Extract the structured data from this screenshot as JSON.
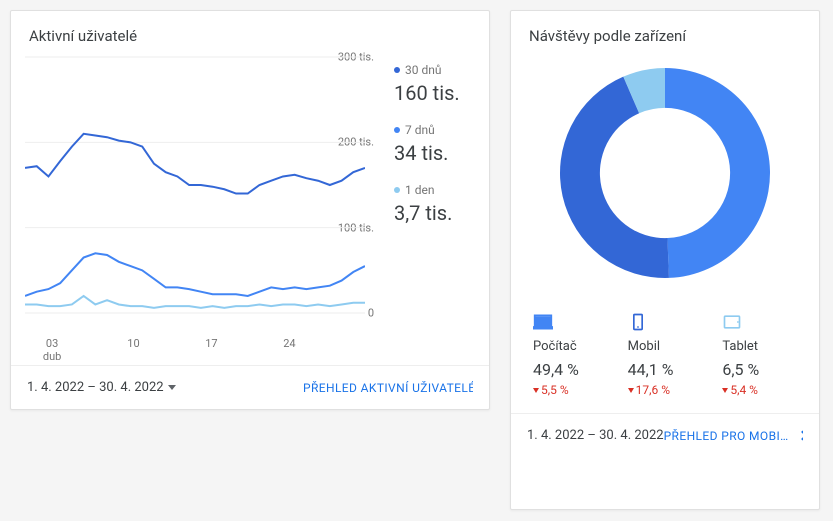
{
  "left_card": {
    "title": "Aktivní uživatelé",
    "date_range": "1. 4. 2022 – 30. 4. 2022",
    "footer_link": "PŘEHLED AKTIVNÍ UŽIVATELÉ",
    "chart": {
      "type": "line",
      "background_color": "#ffffff",
      "grid_color": "#eeeeee",
      "ylim": [
        0,
        300
      ],
      "ytick_step": 100,
      "y_labels": [
        "0",
        "100 tis.",
        "200 tis.",
        "300 tis."
      ],
      "x_categories": [
        "03",
        "10",
        "17",
        "24"
      ],
      "x_sublabel": "dub",
      "line_width": 2,
      "series": [
        {
          "name": "30 dnů",
          "color": "#3367d6",
          "value_text": "160 tis.",
          "points": [
            170,
            172,
            160,
            178,
            195,
            210,
            208,
            206,
            202,
            200,
            195,
            175,
            165,
            160,
            150,
            150,
            148,
            145,
            140,
            140,
            150,
            155,
            160,
            162,
            158,
            155,
            150,
            155,
            165,
            170
          ]
        },
        {
          "name": "7 dnů",
          "color": "#4285f4",
          "value_text": "34 tis.",
          "points": [
            20,
            25,
            28,
            35,
            50,
            65,
            70,
            68,
            60,
            55,
            50,
            40,
            30,
            30,
            28,
            25,
            22,
            22,
            22,
            20,
            25,
            30,
            28,
            30,
            28,
            30,
            32,
            38,
            48,
            55
          ]
        },
        {
          "name": "1 den",
          "color": "#8ecbf0",
          "value_text": "3,7 tis.",
          "points": [
            10,
            10,
            8,
            8,
            10,
            20,
            10,
            15,
            10,
            8,
            8,
            6,
            8,
            8,
            8,
            6,
            8,
            6,
            8,
            8,
            10,
            8,
            10,
            10,
            8,
            10,
            8,
            10,
            12,
            12
          ]
        }
      ]
    }
  },
  "right_card": {
    "title": "Návštěvy podle zařízení",
    "date_range": "1. 4. 2022 – 30. 4. 2022",
    "footer_link": "PŘEHLED PRO MOBI…",
    "donut": {
      "type": "pie",
      "inner_radius_ratio": 0.62,
      "background_color": "#ffffff",
      "slices": [
        {
          "label": "Počítač",
          "value": 49.4,
          "color": "#4285f4"
        },
        {
          "label": "Mobil",
          "value": 44.1,
          "color": "#3367d6"
        },
        {
          "label": "Tablet",
          "value": 6.5,
          "color": "#8ecbf0"
        }
      ]
    },
    "devices": [
      {
        "name": "Počítač",
        "pct": "49,4 %",
        "delta": "5,5 %",
        "icon": "desktop",
        "icon_color": "#4285f4"
      },
      {
        "name": "Mobil",
        "pct": "44,1 %",
        "delta": "17,6 %",
        "icon": "mobile",
        "icon_color": "#3367d6"
      },
      {
        "name": "Tablet",
        "pct": "6,5 %",
        "delta": "5,4 %",
        "icon": "tablet",
        "icon_color": "#8ecbf0"
      }
    ]
  }
}
